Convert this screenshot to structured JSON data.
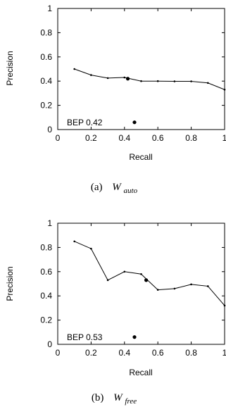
{
  "chart_data": [
    {
      "type": "line",
      "caption_prefix": "(a)",
      "caption_var": "W",
      "caption_sub": "auto",
      "xlabel": "Recall",
      "ylabel": "Precision",
      "xlim": [
        0,
        1
      ],
      "ylim": [
        0,
        1
      ],
      "xticks": [
        "0",
        "0.2",
        "0.4",
        "0.6",
        "0.8",
        "1"
      ],
      "yticks": [
        "0",
        "0.2",
        "0.4",
        "0.6",
        "0.8",
        "1"
      ],
      "series": [
        {
          "x": [
            0.1,
            0.2,
            0.3,
            0.4,
            0.5,
            0.6,
            0.7,
            0.8,
            0.9,
            1.0
          ],
          "y": [
            0.5,
            0.45,
            0.425,
            0.43,
            0.4,
            0.4,
            0.398,
            0.398,
            0.385,
            0.33
          ]
        }
      ],
      "bep_point": {
        "x": 0.42,
        "y": 0.42
      },
      "legend_marker": {
        "x": 0.46,
        "y": 0.06
      },
      "bep_label": "BEP 0.42",
      "grid": false
    },
    {
      "type": "line",
      "caption_prefix": "(b)",
      "caption_var": "W",
      "caption_sub": "free",
      "xlabel": "Recall",
      "ylabel": "Precision",
      "xlim": [
        0,
        1
      ],
      "ylim": [
        0,
        1
      ],
      "xticks": [
        "0",
        "0.2",
        "0.4",
        "0.6",
        "0.8",
        "1"
      ],
      "yticks": [
        "0",
        "0.2",
        "0.4",
        "0.6",
        "0.8",
        "1"
      ],
      "series": [
        {
          "x": [
            0.1,
            0.2,
            0.3,
            0.4,
            0.5,
            0.6,
            0.7,
            0.8,
            0.9,
            1.0
          ],
          "y": [
            0.85,
            0.79,
            0.53,
            0.6,
            0.58,
            0.45,
            0.46,
            0.495,
            0.48,
            0.32
          ]
        }
      ],
      "bep_point": {
        "x": 0.53,
        "y": 0.53
      },
      "legend_marker": {
        "x": 0.46,
        "y": 0.06
      },
      "bep_label": "BEP 0.53",
      "grid": false
    }
  ]
}
